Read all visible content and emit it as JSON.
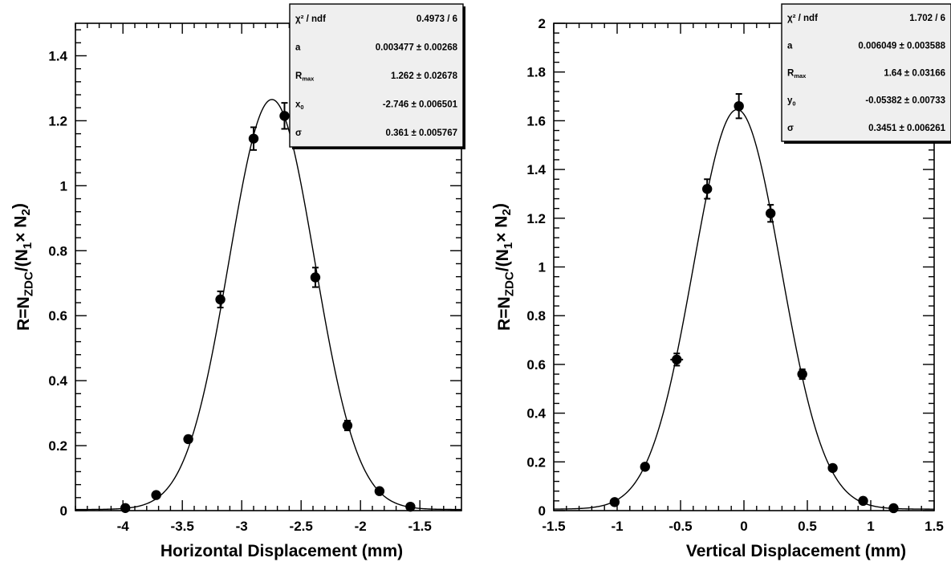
{
  "chart_data": [
    {
      "type": "scatter",
      "xlabel": "Horizontal Displacement (mm)",
      "ylabel": "R=N_{ZDC}/(N_{1}× N_{2})",
      "xlim": [
        -4.4,
        -1.15
      ],
      "ylim": [
        0,
        1.5
      ],
      "xticks": [
        {
          "v": -4,
          "label": "-4"
        },
        {
          "v": -3.5,
          "label": "-3.5"
        },
        {
          "v": -3,
          "label": "-3"
        },
        {
          "v": -2.5,
          "label": "-2.5"
        },
        {
          "v": -2,
          "label": "-2"
        },
        {
          "v": -1.5,
          "label": "-1.5"
        }
      ],
      "yticks": [
        {
          "v": 0,
          "label": "0"
        },
        {
          "v": 0.2,
          "label": "0.2"
        },
        {
          "v": 0.4,
          "label": "0.4"
        },
        {
          "v": 0.6,
          "label": "0.6"
        },
        {
          "v": 0.8,
          "label": "0.8"
        },
        {
          "v": 1.0,
          "label": "1"
        },
        {
          "v": 1.2,
          "label": "1.2"
        },
        {
          "v": 1.4,
          "label": "1.4"
        }
      ],
      "points": [
        {
          "x": -3.98,
          "y": 0.008,
          "err": 0.004
        },
        {
          "x": -3.72,
          "y": 0.048,
          "err": 0.006
        },
        {
          "x": -3.45,
          "y": 0.22,
          "err": 0.01
        },
        {
          "x": -3.18,
          "y": 0.65,
          "err": 0.025
        },
        {
          "x": -2.9,
          "y": 1.145,
          "err": 0.035
        },
        {
          "x": -2.64,
          "y": 1.215,
          "err": 0.04
        },
        {
          "x": -2.38,
          "y": 0.718,
          "err": 0.03
        },
        {
          "x": -2.11,
          "y": 0.262,
          "err": 0.015
        },
        {
          "x": -1.84,
          "y": 0.06,
          "err": 0.006
        },
        {
          "x": -1.58,
          "y": 0.012,
          "err": 0.003
        }
      ],
      "fit": {
        "function": "gaussian",
        "a": 0.003477,
        "Rmax": 1.262,
        "mean": -2.746,
        "sigma": 0.361
      },
      "grid": false,
      "stats_box": {
        "placement": "top-right",
        "rows": [
          {
            "name": "χ² / ndf",
            "value": "0.4973 / 6"
          },
          {
            "name": "a",
            "value": "0.003477 ± 0.00268"
          },
          {
            "name": "R",
            "sub": "max",
            "value": "1.262 ± 0.02678"
          },
          {
            "name": "x",
            "sub": "0",
            "value": "-2.746 ± 0.006501"
          },
          {
            "name": "σ",
            "value": "0.361 ± 0.005767"
          }
        ]
      }
    },
    {
      "type": "scatter",
      "xlabel": "Vertical Displacement (mm)",
      "ylabel": "R=N_{ZDC}/(N_{1}× N_{2})",
      "xlim": [
        -1.5,
        1.5
      ],
      "ylim": [
        0,
        2.0
      ],
      "xticks": [
        {
          "v": -1.5,
          "label": "-1.5"
        },
        {
          "v": -1,
          "label": "-1"
        },
        {
          "v": -0.5,
          "label": "-0.5"
        },
        {
          "v": 0,
          "label": "0"
        },
        {
          "v": 0.5,
          "label": "0.5"
        },
        {
          "v": 1,
          "label": "1"
        },
        {
          "v": 1.5,
          "label": "1.5"
        }
      ],
      "yticks": [
        {
          "v": 0,
          "label": "0"
        },
        {
          "v": 0.2,
          "label": "0.2"
        },
        {
          "v": 0.4,
          "label": "0.4"
        },
        {
          "v": 0.6,
          "label": "0.6"
        },
        {
          "v": 0.8,
          "label": "0.8"
        },
        {
          "v": 1.0,
          "label": "1"
        },
        {
          "v": 1.2,
          "label": "1.2"
        },
        {
          "v": 1.4,
          "label": "1.4"
        },
        {
          "v": 1.6,
          "label": "1.6"
        },
        {
          "v": 1.8,
          "label": "1.8"
        },
        {
          "v": 2.0,
          "label": "2"
        }
      ],
      "points": [
        {
          "x": -1.02,
          "y": 0.035,
          "err": 0.005
        },
        {
          "x": -0.78,
          "y": 0.18,
          "err": 0.01
        },
        {
          "x": -0.53,
          "y": 0.62,
          "err": 0.025,
          "xerr": 0.05
        },
        {
          "x": -0.29,
          "y": 1.32,
          "err": 0.04
        },
        {
          "x": -0.04,
          "y": 1.66,
          "err": 0.05
        },
        {
          "x": 0.21,
          "y": 1.22,
          "err": 0.035
        },
        {
          "x": 0.46,
          "y": 0.56,
          "err": 0.02
        },
        {
          "x": 0.7,
          "y": 0.175,
          "err": 0.01
        },
        {
          "x": 0.94,
          "y": 0.04,
          "err": 0.005
        },
        {
          "x": 1.18,
          "y": 0.01,
          "err": 0.003
        }
      ],
      "fit": {
        "function": "gaussian",
        "a": 0.006049,
        "Rmax": 1.64,
        "mean": -0.05382,
        "sigma": 0.3451
      },
      "grid": false,
      "stats_box": {
        "placement": "top-right",
        "rows": [
          {
            "name": "χ² / ndf",
            "value": "1.702 / 6"
          },
          {
            "name": "a",
            "value": "0.006049 ± 0.003588"
          },
          {
            "name": "R",
            "sub": "max",
            "value": "1.64 ± 0.03166"
          },
          {
            "name": "y",
            "sub": "0",
            "value": "-0.05382 ± 0.00733"
          },
          {
            "name": "σ",
            "value": "0.3451 ± 0.006261"
          }
        ]
      }
    }
  ]
}
